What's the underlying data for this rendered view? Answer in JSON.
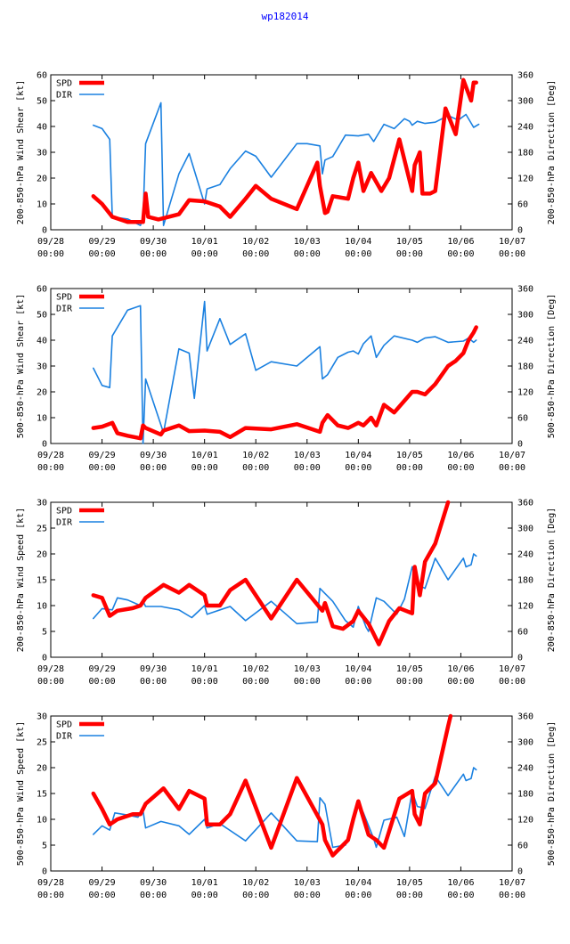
{
  "title": "wp182014",
  "colors": {
    "spd": "#ff0000",
    "dir": "#1a80e0",
    "title": "#0000ff"
  },
  "x_ticks": [
    {
      "date": "09/28",
      "time": "00:00"
    },
    {
      "date": "09/29",
      "time": "00:00"
    },
    {
      "date": "09/30",
      "time": "00:00"
    },
    {
      "date": "10/01",
      "time": "00:00"
    },
    {
      "date": "10/02",
      "time": "00:00"
    },
    {
      "date": "10/03",
      "time": "00:00"
    },
    {
      "date": "10/04",
      "time": "00:00"
    },
    {
      "date": "10/05",
      "time": "00:00"
    },
    {
      "date": "10/06",
      "time": "00:00"
    },
    {
      "date": "10/07",
      "time": "00:00"
    }
  ],
  "chart_data": [
    {
      "type": "line",
      "ylabel": "200-850-hPa Wind Shear [kt]",
      "y2label": "200-850-hPa Direction [Deg]",
      "xlim": [
        0,
        9
      ],
      "ylim": [
        0,
        60
      ],
      "y2lim": [
        0,
        360
      ],
      "yticks": [
        0,
        10,
        20,
        30,
        40,
        50,
        60
      ],
      "y2ticks": [
        0,
        60,
        120,
        180,
        240,
        300,
        360
      ],
      "legend": [
        "SPD",
        "DIR"
      ],
      "series": [
        {
          "name": "SPD",
          "axis": "left",
          "x": [
            0.83,
            1.0,
            1.2,
            1.5,
            1.8,
            1.85,
            1.9,
            2.1,
            2.5,
            2.7,
            3.0,
            3.3,
            3.5,
            3.8,
            4.0,
            4.3,
            4.8,
            5.2,
            5.25,
            5.35,
            5.4,
            5.5,
            5.8,
            5.9,
            6.0,
            6.1,
            6.25,
            6.45,
            6.6,
            6.8,
            7.05,
            7.1,
            7.2,
            7.25,
            7.4,
            7.5,
            7.7,
            7.9,
            8.05,
            8.2,
            8.25,
            8.3
          ],
          "y": [
            13,
            10,
            5,
            3,
            3,
            14,
            5,
            4,
            6,
            11.5,
            11,
            9,
            5,
            12,
            17,
            12,
            8,
            26,
            17,
            6.5,
            7,
            13,
            12,
            20,
            26,
            15,
            22,
            15,
            20,
            35,
            15,
            25,
            30,
            14,
            14,
            15,
            47,
            37,
            58,
            50,
            57,
            57
          ]
        },
        {
          "name": "DIR",
          "axis": "right",
          "x": [
            0.83,
            1.0,
            1.15,
            1.2,
            1.5,
            1.75,
            1.8,
            1.85,
            2.15,
            2.2,
            2.5,
            2.7,
            3.0,
            3.05,
            3.3,
            3.5,
            3.8,
            4.0,
            4.3,
            4.8,
            5.0,
            5.25,
            5.3,
            5.35,
            5.5,
            5.75,
            6.0,
            6.2,
            6.3,
            6.5,
            6.7,
            6.9,
            7.0,
            7.05,
            7.15,
            7.3,
            7.5,
            7.75,
            7.95,
            8.1,
            8.25,
            8.35
          ],
          "y": [
            243,
            235,
            210,
            30,
            25,
            10,
            30,
            200,
            295,
            10,
            130,
            177,
            60,
            95,
            105,
            142,
            183,
            171,
            122,
            200,
            200,
            195,
            130,
            162,
            170,
            220,
            218,
            222,
            205,
            245,
            235,
            258,
            252,
            243,
            252,
            247,
            250,
            265,
            255,
            268,
            238,
            245
          ]
        }
      ]
    },
    {
      "type": "line",
      "ylabel": "500-850-hPa Wind Shear [kt]",
      "y2label": "500-850-hPa Direction [Deg]",
      "xlim": [
        0,
        9
      ],
      "ylim": [
        0,
        60
      ],
      "y2lim": [
        0,
        360
      ],
      "yticks": [
        0,
        10,
        20,
        30,
        40,
        50,
        60
      ],
      "y2ticks": [
        0,
        60,
        120,
        180,
        240,
        300,
        360
      ],
      "legend": [
        "SPD",
        "DIR"
      ],
      "series": [
        {
          "name": "SPD",
          "axis": "left",
          "x": [
            0.83,
            1.0,
            1.2,
            1.3,
            1.5,
            1.75,
            1.8,
            1.85,
            2.15,
            2.2,
            2.5,
            2.7,
            3.0,
            3.3,
            3.5,
            3.8,
            4.3,
            4.8,
            5.25,
            5.3,
            5.4,
            5.6,
            5.8,
            5.9,
            6.0,
            6.1,
            6.25,
            6.35,
            6.5,
            6.7,
            7.05,
            7.15,
            7.3,
            7.5,
            7.75,
            7.9,
            8.05,
            8.15,
            8.25,
            8.3
          ],
          "y": [
            6,
            6.5,
            8,
            4,
            3,
            2,
            7,
            6,
            3.5,
            5,
            7,
            4.8,
            5,
            4.5,
            2.5,
            6,
            5.5,
            7.5,
            4.5,
            8,
            11,
            7,
            6,
            7,
            8,
            7,
            10,
            7,
            15,
            12,
            20,
            20,
            19,
            23,
            30,
            32,
            35,
            40,
            43,
            45
          ]
        },
        {
          "name": "DIR",
          "axis": "right",
          "x": [
            0.83,
            1.0,
            1.15,
            1.2,
            1.5,
            1.75,
            1.8,
            1.85,
            2.2,
            2.5,
            2.7,
            2.8,
            3.0,
            3.05,
            3.3,
            3.5,
            3.8,
            4.0,
            4.3,
            4.8,
            5.25,
            5.3,
            5.4,
            5.6,
            5.8,
            5.9,
            6.0,
            6.1,
            6.25,
            6.35,
            6.5,
            6.7,
            7.05,
            7.15,
            7.3,
            7.5,
            7.75,
            8.05,
            8.15,
            8.25,
            8.3
          ],
          "y": [
            175,
            135,
            130,
            250,
            310,
            320,
            0,
            150,
            25,
            220,
            210,
            105,
            330,
            215,
            290,
            230,
            255,
            170,
            190,
            180,
            225,
            150,
            160,
            200,
            212,
            215,
            208,
            232,
            250,
            200,
            228,
            250,
            240,
            235,
            245,
            248,
            235,
            238,
            245,
            235,
            240
          ]
        }
      ]
    },
    {
      "type": "line",
      "ylabel": "200-850-hPa Wind Speed [kt]",
      "y2label": "200-850-hPa Direction [Deg]",
      "xlim": [
        0,
        9
      ],
      "ylim": [
        0,
        30
      ],
      "y2lim": [
        0,
        360
      ],
      "yticks": [
        0,
        5,
        10,
        15,
        20,
        25,
        30
      ],
      "y2ticks": [
        0,
        60,
        120,
        180,
        240,
        300,
        360
      ],
      "legend": [
        "SPD",
        "DIR"
      ],
      "series": [
        {
          "name": "SPD",
          "axis": "left",
          "x": [
            0.83,
            1.0,
            1.15,
            1.3,
            1.6,
            1.75,
            1.85,
            2.2,
            2.5,
            2.7,
            3.0,
            3.05,
            3.3,
            3.5,
            3.8,
            4.3,
            4.8,
            5.3,
            5.35,
            5.5,
            5.7,
            5.9,
            6.0,
            6.2,
            6.4,
            6.6,
            6.8,
            7.05,
            7.1,
            7.2,
            7.3,
            7.5,
            7.75
          ],
          "y": [
            12,
            11.5,
            8,
            9,
            9.5,
            10,
            11.5,
            14,
            12.5,
            14,
            12,
            10,
            10,
            13,
            15,
            7.5,
            15,
            9,
            10.5,
            6,
            5.5,
            7,
            9,
            6.5,
            2.5,
            7,
            9.5,
            8.5,
            17.5,
            12,
            18.5,
            22,
            30
          ]
        },
        {
          "name": "DIR",
          "axis": "right",
          "x": [
            0.83,
            1.0,
            1.2,
            1.3,
            1.5,
            1.75,
            1.8,
            1.85,
            2.15,
            2.5,
            2.75,
            3.0,
            3.05,
            3.5,
            3.8,
            4.3,
            4.8,
            5.2,
            5.25,
            5.5,
            5.75,
            5.9,
            6.0,
            6.15,
            6.2,
            6.35,
            6.5,
            6.75,
            6.9,
            7.05,
            7.15,
            7.3,
            7.5,
            7.75,
            8.05,
            8.1,
            8.2,
            8.25,
            8.3
          ],
          "y": [
            90,
            113,
            110,
            138,
            133,
            120,
            130,
            118,
            118,
            110,
            92,
            120,
            100,
            118,
            85,
            130,
            78,
            82,
            160,
            130,
            85,
            70,
            118,
            70,
            60,
            138,
            130,
            100,
            135,
            210,
            170,
            160,
            230,
            180,
            230,
            210,
            215,
            240,
            235
          ]
        }
      ]
    },
    {
      "type": "line",
      "ylabel": "500-850-hPa Wind Speed [kt]",
      "y2label": "500-850-hPa Direction [Deg]",
      "xlim": [
        0,
        9
      ],
      "ylim": [
        0,
        30
      ],
      "y2lim": [
        0,
        360
      ],
      "yticks": [
        0,
        5,
        10,
        15,
        20,
        25,
        30
      ],
      "y2ticks": [
        0,
        60,
        120,
        180,
        240,
        300,
        360
      ],
      "legend": [
        "SPD",
        "DIR"
      ],
      "series": [
        {
          "name": "SPD",
          "axis": "left",
          "x": [
            0.83,
            1.0,
            1.15,
            1.3,
            1.6,
            1.75,
            1.85,
            2.2,
            2.5,
            2.7,
            3.0,
            3.05,
            3.3,
            3.5,
            3.8,
            4.3,
            4.8,
            5.3,
            5.35,
            5.5,
            5.8,
            5.9,
            6.0,
            6.2,
            6.35,
            6.5,
            6.8,
            7.05,
            7.1,
            7.2,
            7.3,
            7.5,
            7.75,
            7.8
          ],
          "y": [
            15,
            12,
            9,
            10,
            11,
            11,
            13,
            16,
            12,
            15.5,
            14,
            9,
            9,
            11,
            17.5,
            4.5,
            18,
            9,
            6,
            3,
            6,
            10,
            13.5,
            7,
            6,
            4.5,
            14,
            15.5,
            11,
            9,
            15,
            17,
            28,
            30
          ]
        },
        {
          "name": "DIR",
          "axis": "right",
          "x": [
            0.83,
            1.0,
            1.15,
            1.25,
            1.5,
            1.7,
            1.8,
            1.85,
            2.15,
            2.5,
            2.7,
            3.0,
            3.05,
            3.3,
            3.8,
            4.3,
            4.8,
            5.2,
            5.25,
            5.35,
            5.5,
            5.75,
            6.0,
            6.1,
            6.3,
            6.35,
            6.5,
            6.75,
            6.9,
            7.05,
            7.15,
            7.3,
            7.5,
            7.75,
            8.05,
            8.1,
            8.2,
            8.25,
            8.3
          ],
          "y": [
            85,
            105,
            95,
            135,
            130,
            125,
            140,
            100,
            115,
            105,
            85,
            120,
            100,
            110,
            70,
            135,
            70,
            68,
            170,
            155,
            55,
            60,
            160,
            135,
            75,
            55,
            118,
            125,
            80,
            185,
            150,
            145,
            220,
            175,
            225,
            210,
            215,
            240,
            235
          ]
        }
      ]
    }
  ]
}
